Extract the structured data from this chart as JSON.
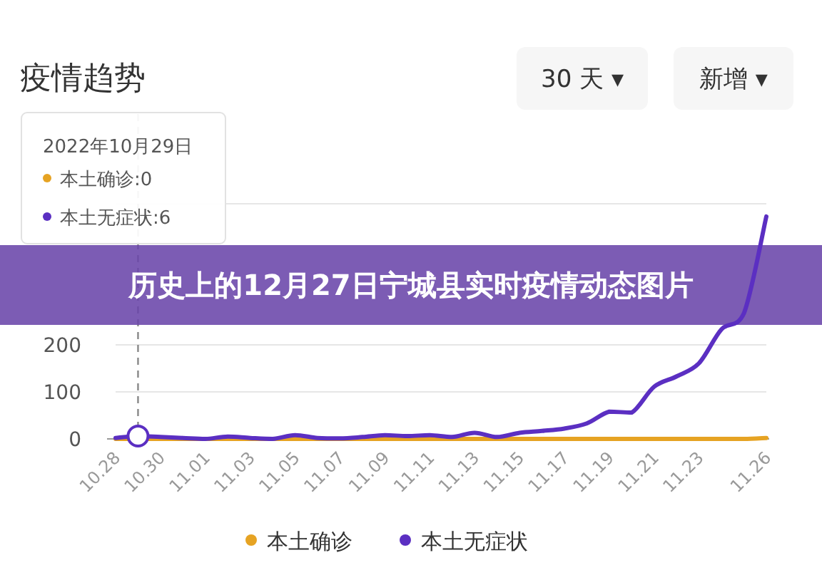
{
  "chart_data": {
    "type": "line",
    "title": "疫情趋势",
    "subtitle": "历史上的12月27日宁城县实时疫情动态图片",
    "annotations": [
      "30 天 ▾",
      "新增 ▾",
      "2022年10月29日",
      "本土确诊:0",
      "本土无症状:6"
    ],
    "x": [
      "2022-10-28",
      "2022-10-29",
      "2022-10-30",
      "2022-10-31",
      "2022-11-01",
      "2022-11-02",
      "2022-11-03",
      "2022-11-04",
      "2022-11-05",
      "2022-11-06",
      "2022-11-07",
      "2022-11-08",
      "2022-11-09",
      "2022-11-10",
      "2022-11-11",
      "2022-11-12",
      "2022-11-13",
      "2022-11-14",
      "2022-11-15",
      "2022-11-16",
      "2022-11-17",
      "2022-11-18",
      "2022-11-19",
      "2022-11-20",
      "2022-11-21",
      "2022-11-22",
      "2022-11-23",
      "2022-11-24",
      "2022-11-25",
      "2022-11-26"
    ],
    "series": [
      {
        "name": "本土确诊",
        "color": "#e6a323",
        "values": [
          0,
          0,
          0,
          0,
          0,
          0,
          0,
          0,
          0,
          0,
          0,
          0,
          0,
          0,
          0,
          0,
          0,
          0,
          0,
          0,
          0,
          0,
          0,
          0,
          0,
          0,
          0,
          0,
          0,
          2
        ]
      },
      {
        "name": "本土无症状",
        "color": "#5b2fc2",
        "values": [
          2,
          6,
          4,
          2,
          0,
          5,
          2,
          0,
          8,
          2,
          1,
          4,
          8,
          6,
          8,
          4,
          13,
          4,
          13,
          17,
          22,
          33,
          58,
          56,
          111,
          133,
          161,
          233,
          267,
          473
        ]
      }
    ],
    "xlim": [
      "2022-10-28",
      "2022-11-26"
    ],
    "xticks": [
      {
        "value": "2022-10-28",
        "label": "10.28"
      },
      {
        "value": "2022-10-30",
        "label": "10.30"
      },
      {
        "value": "2022-11-01",
        "label": "11.01"
      },
      {
        "value": "2022-11-03",
        "label": "11.03"
      },
      {
        "value": "2022-11-05",
        "label": "11.05"
      },
      {
        "value": "2022-11-07",
        "label": "11.07"
      },
      {
        "value": "2022-11-09",
        "label": "11.09"
      },
      {
        "value": "2022-11-11",
        "label": "11.11"
      },
      {
        "value": "2022-11-13",
        "label": "11.13"
      },
      {
        "value": "2022-11-15",
        "label": "11.15"
      },
      {
        "value": "2022-11-17",
        "label": "11.17"
      },
      {
        "value": "2022-11-19",
        "label": "11.19"
      },
      {
        "value": "2022-11-21",
        "label": "11.21"
      },
      {
        "value": "2022-11-23",
        "label": "11.23"
      },
      {
        "value": "2022-11-26",
        "label": "11.26"
      }
    ],
    "ylim": [
      0,
      500
    ],
    "yticks": [
      0,
      100,
      200,
      {
        "value": 500,
        "label": null
      }
    ],
    "grid": "y",
    "legend": "bottom",
    "marker": "none",
    "line_style": "solid",
    "ref_lines": [
      {
        "axis": "x",
        "value": "2022-10-29",
        "line_style": "dashed",
        "color": "#888888"
      }
    ]
  }
}
